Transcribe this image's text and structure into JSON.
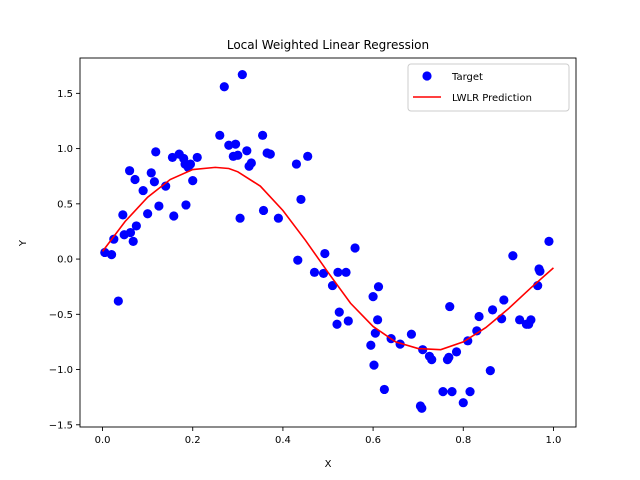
{
  "chart_data": {
    "type": "scatter",
    "title": "Local Weighted Linear Regression",
    "xlabel": "X",
    "ylabel": "Y",
    "xlim": [
      -0.05,
      1.05
    ],
    "ylim": [
      -1.52,
      1.82
    ],
    "x_ticks": [
      0.0,
      0.2,
      0.4,
      0.6,
      0.8,
      1.0
    ],
    "x_tick_labels": [
      "0.0",
      "0.2",
      "0.4",
      "0.6",
      "0.8",
      "1.0"
    ],
    "y_ticks": [
      -1.5,
      -1.0,
      -0.5,
      0.0,
      0.5,
      1.0,
      1.5
    ],
    "y_tick_labels": [
      "−1.5",
      "−1.0",
      "−0.5",
      "0.0",
      "0.5",
      "1.0",
      "1.5"
    ],
    "grid": false,
    "legend_position": "top-right",
    "series": [
      {
        "name": "Target",
        "kind": "scatter",
        "color": "#0000ff",
        "points": [
          [
            0.005,
            0.06
          ],
          [
            0.02,
            0.04
          ],
          [
            0.025,
            0.18
          ],
          [
            0.035,
            -0.38
          ],
          [
            0.045,
            0.4
          ],
          [
            0.048,
            0.22
          ],
          [
            0.06,
            0.8
          ],
          [
            0.062,
            0.24
          ],
          [
            0.068,
            0.16
          ],
          [
            0.072,
            0.72
          ],
          [
            0.075,
            0.3
          ],
          [
            0.09,
            0.62
          ],
          [
            0.1,
            0.41
          ],
          [
            0.108,
            0.78
          ],
          [
            0.115,
            0.7
          ],
          [
            0.118,
            0.97
          ],
          [
            0.125,
            0.48
          ],
          [
            0.14,
            0.66
          ],
          [
            0.155,
            0.92
          ],
          [
            0.158,
            0.39
          ],
          [
            0.17,
            0.95
          ],
          [
            0.18,
            0.91
          ],
          [
            0.183,
            0.86
          ],
          [
            0.185,
            0.49
          ],
          [
            0.19,
            0.83
          ],
          [
            0.195,
            0.86
          ],
          [
            0.2,
            0.71
          ],
          [
            0.21,
            0.92
          ],
          [
            0.26,
            1.12
          ],
          [
            0.27,
            1.56
          ],
          [
            0.28,
            1.03
          ],
          [
            0.29,
            0.93
          ],
          [
            0.295,
            1.04
          ],
          [
            0.3,
            0.94
          ],
          [
            0.305,
            0.37
          ],
          [
            0.31,
            1.67
          ],
          [
            0.32,
            0.98
          ],
          [
            0.325,
            0.84
          ],
          [
            0.33,
            0.87
          ],
          [
            0.355,
            1.12
          ],
          [
            0.357,
            0.44
          ],
          [
            0.365,
            0.96
          ],
          [
            0.372,
            0.95
          ],
          [
            0.39,
            0.37
          ],
          [
            0.43,
            0.86
          ],
          [
            0.433,
            -0.01
          ],
          [
            0.44,
            0.54
          ],
          [
            0.455,
            0.93
          ],
          [
            0.47,
            -0.12
          ],
          [
            0.49,
            -0.13
          ],
          [
            0.493,
            0.05
          ],
          [
            0.51,
            -0.24
          ],
          [
            0.52,
            -0.59
          ],
          [
            0.522,
            -0.12
          ],
          [
            0.525,
            -0.48
          ],
          [
            0.54,
            -0.12
          ],
          [
            0.545,
            -0.56
          ],
          [
            0.56,
            0.1
          ],
          [
            0.595,
            -0.78
          ],
          [
            0.6,
            -0.34
          ],
          [
            0.602,
            -0.96
          ],
          [
            0.605,
            -0.67
          ],
          [
            0.61,
            -0.55
          ],
          [
            0.612,
            -0.25
          ],
          [
            0.625,
            -1.18
          ],
          [
            0.64,
            -0.72
          ],
          [
            0.66,
            -0.77
          ],
          [
            0.685,
            -0.68
          ],
          [
            0.705,
            -1.33
          ],
          [
            0.708,
            -1.35
          ],
          [
            0.71,
            -0.82
          ],
          [
            0.725,
            -0.88
          ],
          [
            0.73,
            -0.91
          ],
          [
            0.755,
            -1.2
          ],
          [
            0.765,
            -0.91
          ],
          [
            0.768,
            -0.89
          ],
          [
            0.77,
            -0.43
          ],
          [
            0.775,
            -1.2
          ],
          [
            0.785,
            -0.84
          ],
          [
            0.8,
            -1.3
          ],
          [
            0.81,
            -0.74
          ],
          [
            0.815,
            -1.2
          ],
          [
            0.83,
            -0.65
          ],
          [
            0.835,
            -0.52
          ],
          [
            0.86,
            -1.01
          ],
          [
            0.865,
            -0.46
          ],
          [
            0.885,
            -0.54
          ],
          [
            0.89,
            -0.37
          ],
          [
            0.91,
            0.03
          ],
          [
            0.925,
            -0.55
          ],
          [
            0.94,
            -0.59
          ],
          [
            0.945,
            -0.59
          ],
          [
            0.95,
            -0.55
          ],
          [
            0.965,
            -0.24
          ],
          [
            0.968,
            -0.09
          ],
          [
            0.97,
            -0.11
          ],
          [
            0.99,
            0.16
          ]
        ]
      },
      {
        "name": "LWLR Prediction",
        "kind": "line",
        "color": "#ff0000",
        "points": [
          [
            0.0,
            0.07
          ],
          [
            0.05,
            0.34
          ],
          [
            0.1,
            0.56
          ],
          [
            0.15,
            0.72
          ],
          [
            0.2,
            0.81
          ],
          [
            0.25,
            0.83
          ],
          [
            0.28,
            0.82
          ],
          [
            0.3,
            0.79
          ],
          [
            0.35,
            0.66
          ],
          [
            0.4,
            0.44
          ],
          [
            0.45,
            0.17
          ],
          [
            0.5,
            -0.12
          ],
          [
            0.55,
            -0.4
          ],
          [
            0.6,
            -0.61
          ],
          [
            0.65,
            -0.75
          ],
          [
            0.7,
            -0.81
          ],
          [
            0.75,
            -0.82
          ],
          [
            0.8,
            -0.75
          ],
          [
            0.85,
            -0.62
          ],
          [
            0.9,
            -0.45
          ],
          [
            0.95,
            -0.26
          ],
          [
            1.0,
            -0.08
          ]
        ]
      }
    ]
  }
}
